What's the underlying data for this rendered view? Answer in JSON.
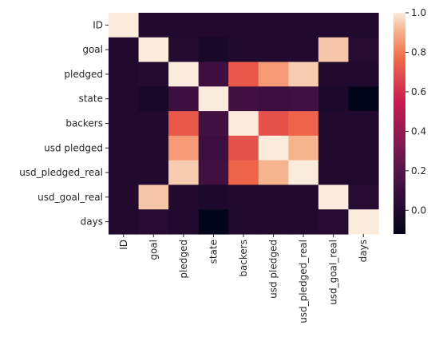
{
  "chart_data": {
    "type": "heatmap",
    "title": "",
    "xlabel": "",
    "ylabel": "",
    "x_labels": [
      "ID",
      "goal",
      "pledged",
      "state",
      "backers",
      "usd pledged",
      "usd_pledged_real",
      "usd_goal_real",
      "days"
    ],
    "y_labels": [
      "ID",
      "goal",
      "pledged",
      "state",
      "backers",
      "usd pledged",
      "usd_pledged_real",
      "usd_goal_real",
      "days"
    ],
    "values": [
      [
        1.0,
        0.0,
        0.0,
        0.0,
        0.0,
        0.0,
        0.0,
        0.0,
        0.0
      ],
      [
        0.0,
        1.0,
        0.01,
        -0.03,
        0.0,
        0.0,
        0.0,
        0.94,
        0.02
      ],
      [
        0.0,
        0.01,
        1.0,
        0.11,
        0.72,
        0.86,
        0.95,
        0.0,
        0.0
      ],
      [
        0.0,
        -0.03,
        0.11,
        1.0,
        0.13,
        0.11,
        0.12,
        -0.02,
        -0.12
      ],
      [
        0.0,
        0.0,
        0.72,
        0.13,
        1.0,
        0.7,
        0.75,
        0.0,
        0.0
      ],
      [
        0.0,
        0.0,
        0.86,
        0.11,
        0.7,
        1.0,
        0.91,
        0.0,
        0.0
      ],
      [
        0.0,
        0.0,
        0.95,
        0.12,
        0.75,
        0.91,
        1.0,
        0.0,
        0.0
      ],
      [
        0.0,
        0.94,
        0.0,
        -0.02,
        0.0,
        0.0,
        0.0,
        1.0,
        0.02
      ],
      [
        0.0,
        0.02,
        0.0,
        -0.12,
        0.0,
        0.0,
        0.0,
        0.02,
        1.0
      ]
    ],
    "colorscale": "rocket",
    "vmin": -0.12,
    "vmax": 1.0,
    "colorbar_ticks": [
      "0.0",
      "0.2",
      "0.4",
      "0.6",
      "0.8",
      "1.0"
    ],
    "grid": false
  }
}
